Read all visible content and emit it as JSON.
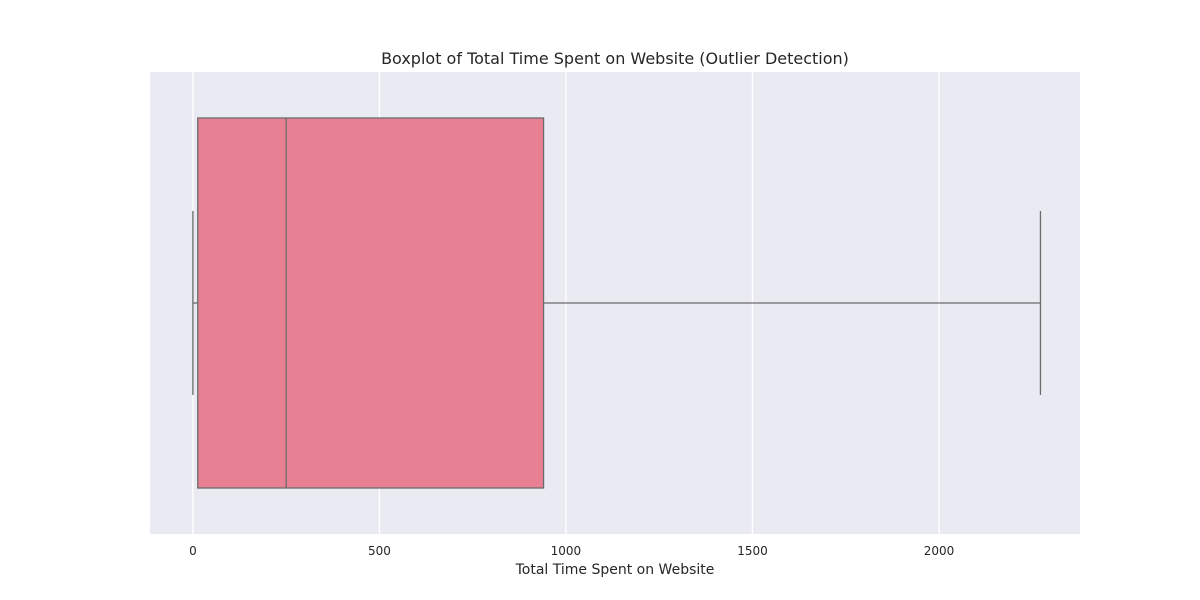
{
  "chart_data": {
    "type": "box",
    "title": "Boxplot of Total Time Spent on Website (Outlier Detection)",
    "xlabel": "Total Time Spent on Website",
    "ylabel": "",
    "xlim": [
      -115,
      2378
    ],
    "xticks": [
      0,
      500,
      1000,
      1500,
      2000
    ],
    "grid": "vertical",
    "orientation": "horizontal",
    "box": {
      "whisker_low": 0,
      "q1": 13,
      "median": 250,
      "q3": 940,
      "whisker_high": 2272
    },
    "colors": {
      "plot_background": "#eaeaf2",
      "box_fill": "#e88093",
      "line": "#6b6b6b",
      "grid": "#ffffff"
    }
  }
}
